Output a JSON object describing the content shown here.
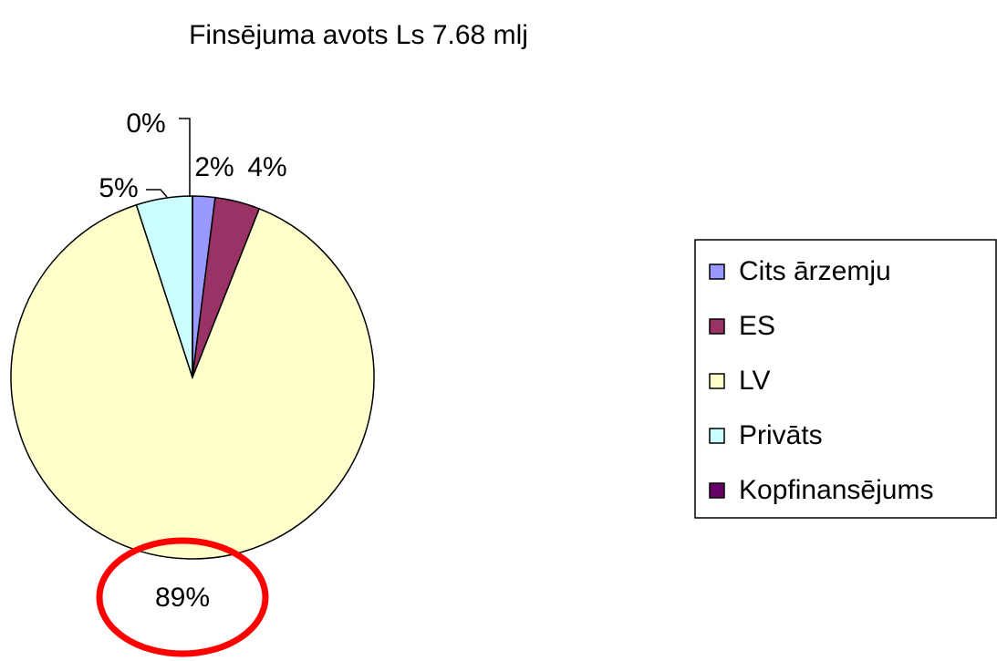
{
  "chart_data": {
    "type": "pie",
    "title": "Finsējuma avots  Ls 7.68 mlj",
    "categories": [
      "Cits ārzemju",
      "ES",
      "LV",
      "Privāts",
      "Kopfinansējums"
    ],
    "values": [
      2,
      4,
      89,
      5,
      0
    ],
    "value_labels": [
      "2%",
      "4%",
      "89%",
      "5%",
      "0%"
    ],
    "colors": [
      "#9999ff",
      "#993366",
      "#ffffcc",
      "#ccffff",
      "#660066"
    ],
    "legend": "right"
  }
}
